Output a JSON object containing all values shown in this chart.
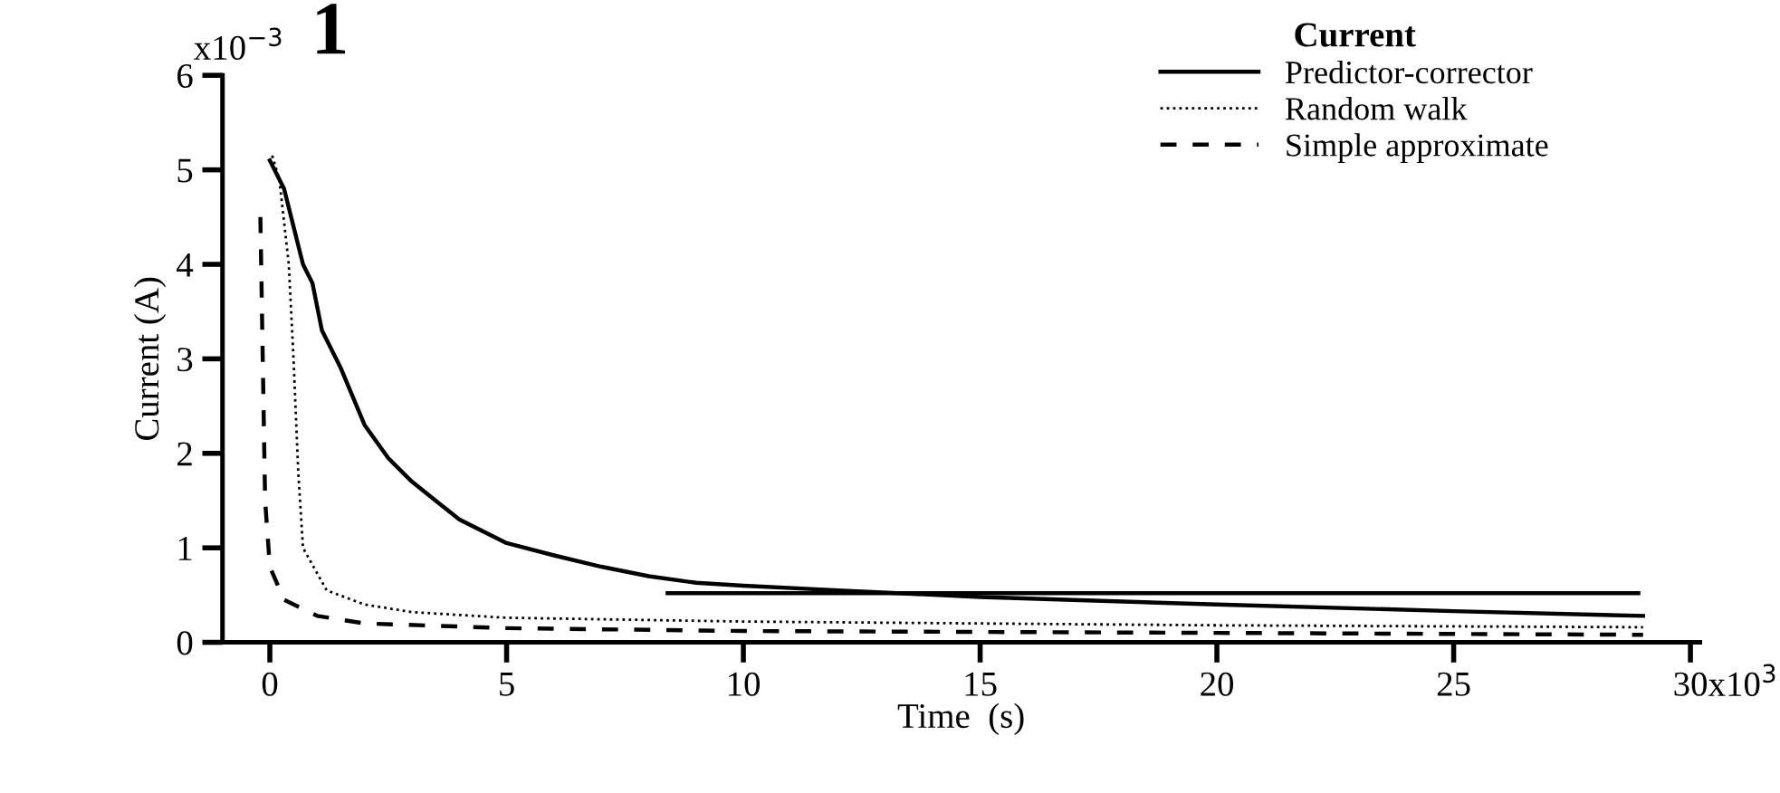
{
  "chart_data": {
    "type": "line",
    "xlabel": "Time  (s)",
    "ylabel": "Current (A)",
    "legend_title": "Current",
    "annotations": [
      "1",
      "x10$^{3}$",
      "x10$^{−3}$"
    ],
    "series": [
      {
        "name": "Predictor-corrector",
        "color": "#000000",
        "line_style": "solid",
        "x": [
          0,
          0.3,
          0.5,
          0.7,
          0.9,
          1.1,
          1.5,
          2,
          2.5,
          3,
          3.5,
          4,
          5,
          6,
          7,
          8,
          9,
          10,
          12,
          15,
          20,
          25,
          29
        ],
        "values": [
          5.1,
          4.8,
          4.4,
          4.0,
          3.8,
          3.3,
          2.9,
          2.3,
          1.95,
          1.7,
          1.5,
          1.3,
          1.05,
          0.92,
          0.8,
          0.7,
          0.63,
          0.6,
          0.55,
          0.48,
          0.4,
          0.33,
          0.28
        ]
      },
      {
        "name": "Random walk",
        "color": "#000000",
        "line_style": "dotted",
        "x": [
          0.05,
          0.2,
          0.4,
          0.5,
          0.6,
          0.7,
          1.2,
          2,
          3,
          5,
          10,
          20,
          29
        ],
        "values": [
          5.15,
          4.9,
          4.0,
          3.0,
          1.8,
          1.0,
          0.55,
          0.4,
          0.32,
          0.26,
          0.22,
          0.18,
          0.16
        ]
      },
      {
        "name": "Simple approximate",
        "color": "#000000",
        "line_style": "dashed",
        "x": [
          -0.2,
          -0.15,
          -0.1,
          0,
          0.3,
          1,
          2,
          5,
          10,
          20,
          29
        ],
        "values": [
          4.5,
          3.0,
          1.5,
          0.8,
          0.45,
          0.28,
          0.2,
          0.15,
          0.12,
          0.1,
          0.08
        ]
      },
      {
        "color": "#000000",
        "line_style": "solid",
        "x": [
          8.4,
          28.9
        ],
        "values": [
          0.52,
          0.52
        ]
      }
    ],
    "xlim": [
      -1,
      30.2
    ],
    "ylim": [
      0,
      6
    ],
    "xticks": [
      0,
      5,
      10,
      15,
      20,
      25,
      30
    ],
    "yticks": [
      0,
      1,
      2,
      3,
      4,
      5,
      6
    ],
    "legend": "top right",
    "grid": false
  }
}
